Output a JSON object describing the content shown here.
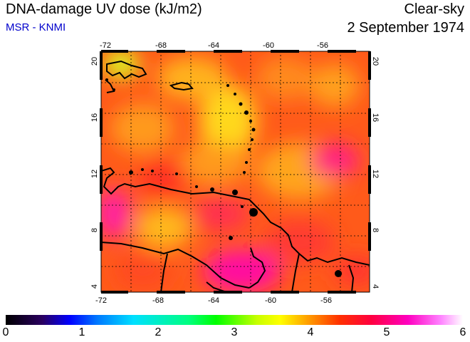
{
  "header": {
    "title": "DNA-damage UV dose (kJ/m2)",
    "source": "MSR - KNMI",
    "condition": "Clear-sky",
    "date": "2 September 1974"
  },
  "map": {
    "lon_ticks": [
      "-72",
      "-68",
      "-64",
      "-60",
      "-56"
    ],
    "lat_ticks": [
      "20",
      "16",
      "12",
      "8",
      "4"
    ],
    "region": "Caribbean / northern South America",
    "colorscale": "UV dose 0-6"
  },
  "colorbar": {
    "labels": [
      "0",
      "1",
      "2",
      "3",
      "4",
      "5",
      "6"
    ]
  }
}
